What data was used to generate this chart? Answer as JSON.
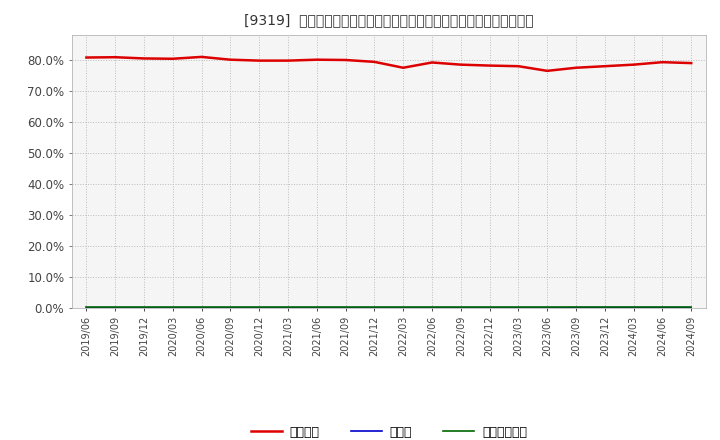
{
  "title": "[9319]  自己資本、のれん、繰延税金資産の総資産に対する比率の推移",
  "x_labels": [
    "2019/06",
    "2019/09",
    "2019/12",
    "2020/03",
    "2020/06",
    "2020/09",
    "2020/12",
    "2021/03",
    "2021/06",
    "2021/09",
    "2021/12",
    "2022/03",
    "2022/06",
    "2022/09",
    "2022/12",
    "2023/03",
    "2023/06",
    "2023/09",
    "2023/12",
    "2024/03",
    "2024/06",
    "2024/09"
  ],
  "jiko_shihon": [
    80.8,
    80.9,
    80.5,
    80.4,
    81.0,
    80.1,
    79.8,
    79.8,
    80.1,
    80.0,
    79.4,
    77.5,
    79.2,
    78.5,
    78.2,
    78.0,
    76.5,
    77.5,
    78.0,
    78.5,
    79.3,
    79.0
  ],
  "noren": [
    0.0,
    0.0,
    0.0,
    0.0,
    0.0,
    0.0,
    0.0,
    0.0,
    0.0,
    0.0,
    0.0,
    0.0,
    0.0,
    0.0,
    0.0,
    0.0,
    0.0,
    0.1,
    0.1,
    0.1,
    0.1,
    0.1
  ],
  "kurinobe_zeikinsisan": [
    0.3,
    0.3,
    0.3,
    0.3,
    0.3,
    0.3,
    0.3,
    0.3,
    0.3,
    0.3,
    0.3,
    0.3,
    0.3,
    0.3,
    0.3,
    0.3,
    0.3,
    0.3,
    0.3,
    0.3,
    0.3,
    0.3
  ],
  "jiko_color": "#dd0000",
  "noren_color": "#0000cc",
  "kurinobe_color": "#006600",
  "background_color": "#ffffff",
  "plot_bg_color": "#f5f5f5",
  "grid_color": "#bbbbbb",
  "ylim": [
    0,
    88
  ],
  "yticks": [
    0.0,
    10.0,
    20.0,
    30.0,
    40.0,
    50.0,
    60.0,
    70.0,
    80.0
  ],
  "legend_labels": [
    "自己資本",
    "のれん",
    "繰延税金資産"
  ],
  "title_prefix": "[9319]  ",
  "title_suffix": "自己資本、のれん、繰延税金資産の総資産に対する比率の推移"
}
